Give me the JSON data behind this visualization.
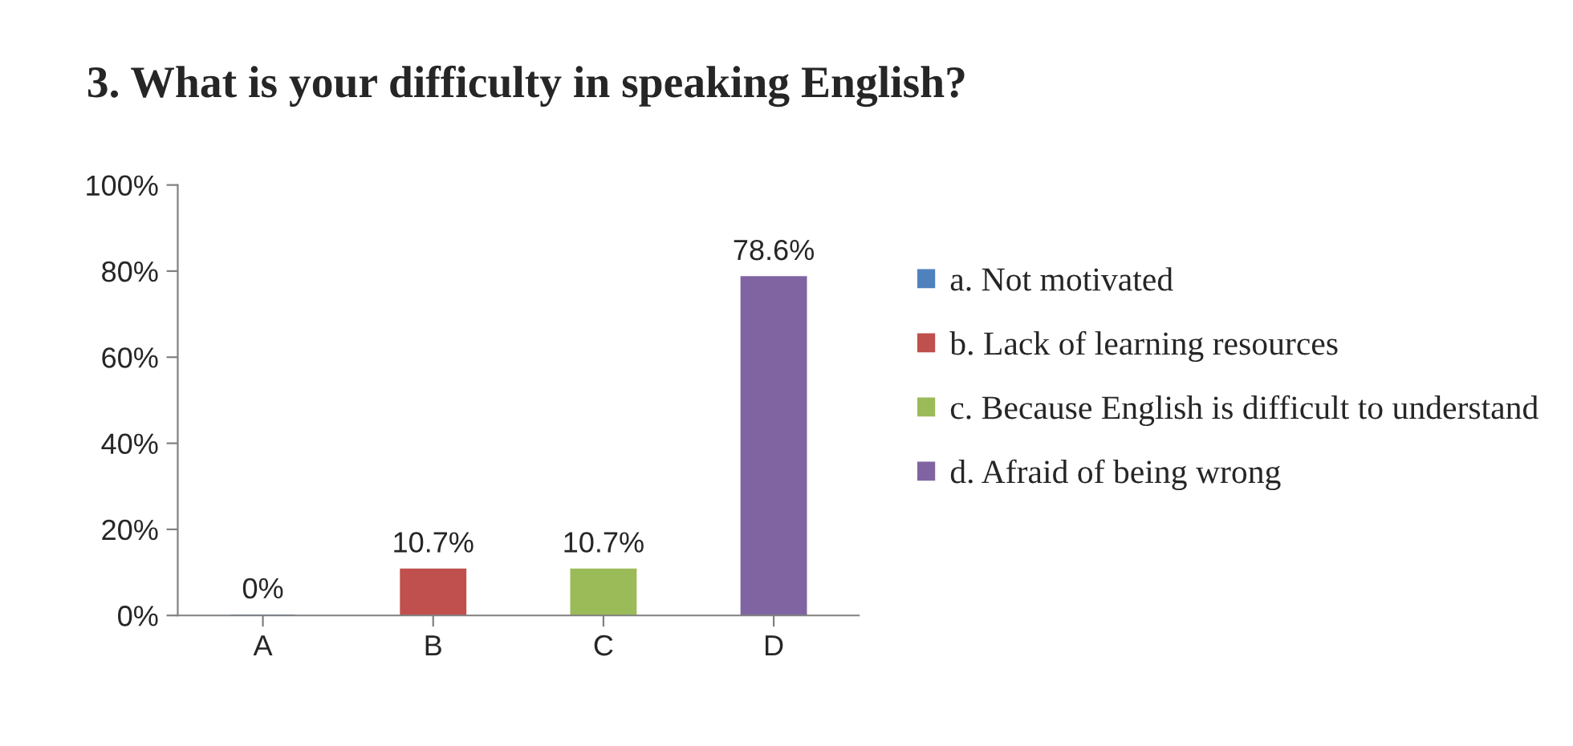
{
  "chart_data": {
    "type": "bar",
    "title": "3. What is your difficulty in speaking English?",
    "categories": [
      "A",
      "B",
      "C",
      "D"
    ],
    "series": [
      {
        "name": "a. Not motivated",
        "color": "#4f81bd",
        "values": [
          0,
          null,
          null,
          null
        ],
        "value_labels": [
          "0%",
          null,
          null,
          null
        ]
      },
      {
        "name": "b. Lack of learning resources",
        "color": "#c0504d",
        "values": [
          null,
          10.7,
          null,
          null
        ],
        "value_labels": [
          null,
          "10.7%",
          null,
          null
        ]
      },
      {
        "name": "c. Because English is difficult to understand",
        "color": "#9bbb59",
        "values": [
          null,
          null,
          10.7,
          null
        ],
        "value_labels": [
          null,
          null,
          "10.7%",
          null
        ]
      },
      {
        "name": "d. Afraid of being wrong",
        "color": "#8064a2",
        "values": [
          null,
          null,
          null,
          78.6
        ],
        "value_labels": [
          null,
          null,
          null,
          "78.6%"
        ]
      }
    ],
    "ylim": [
      0,
      100
    ],
    "yticks": [
      {
        "value": 0,
        "label": "0%"
      },
      {
        "value": 20,
        "label": "20%"
      },
      {
        "value": 40,
        "label": "40%"
      },
      {
        "value": 60,
        "label": "60%"
      },
      {
        "value": 80,
        "label": "80%"
      },
      {
        "value": 100,
        "label": "100%"
      }
    ],
    "grid": false,
    "legend": "right"
  }
}
